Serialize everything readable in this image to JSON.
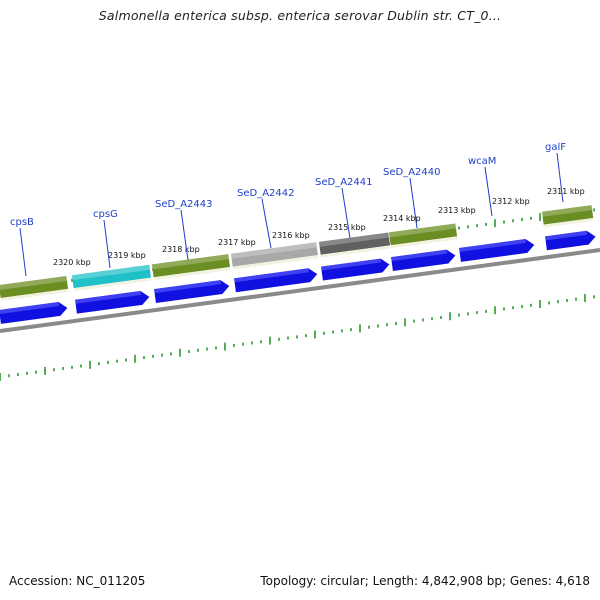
{
  "title": "Salmonella enterica subsp. enterica serovar Dublin str. CT_0...",
  "footer": {
    "accession": "Accession: NC_011205",
    "summary": "Topology: circular; Length: 4,842,908 bp; Genes: 4,618"
  },
  "colors": {
    "cds_arrow": "#1010e0",
    "feature_olive": "#6b8e23",
    "feature_cyan": "#20c0c8",
    "feature_gray": "#a8a8a8",
    "feature_darkgray": "#606060",
    "backbone": "#808080",
    "tick": "#2a9a2a",
    "label": "#1f3fc8"
  },
  "gene_labels": [
    "cpsB",
    "cpsG",
    "SeD_A2443",
    "SeD_A2442",
    "SeD_A2441",
    "SeD_A2440",
    "wcaM",
    "galF"
  ],
  "kbp_labels": [
    "2320 kbp",
    "2319 kbp",
    "2318 kbp",
    "2317 kbp",
    "2316 kbp",
    "2315 kbp",
    "2314 kbp",
    "2313 kbp",
    "2312 kbp",
    "2311 kbp"
  ]
}
